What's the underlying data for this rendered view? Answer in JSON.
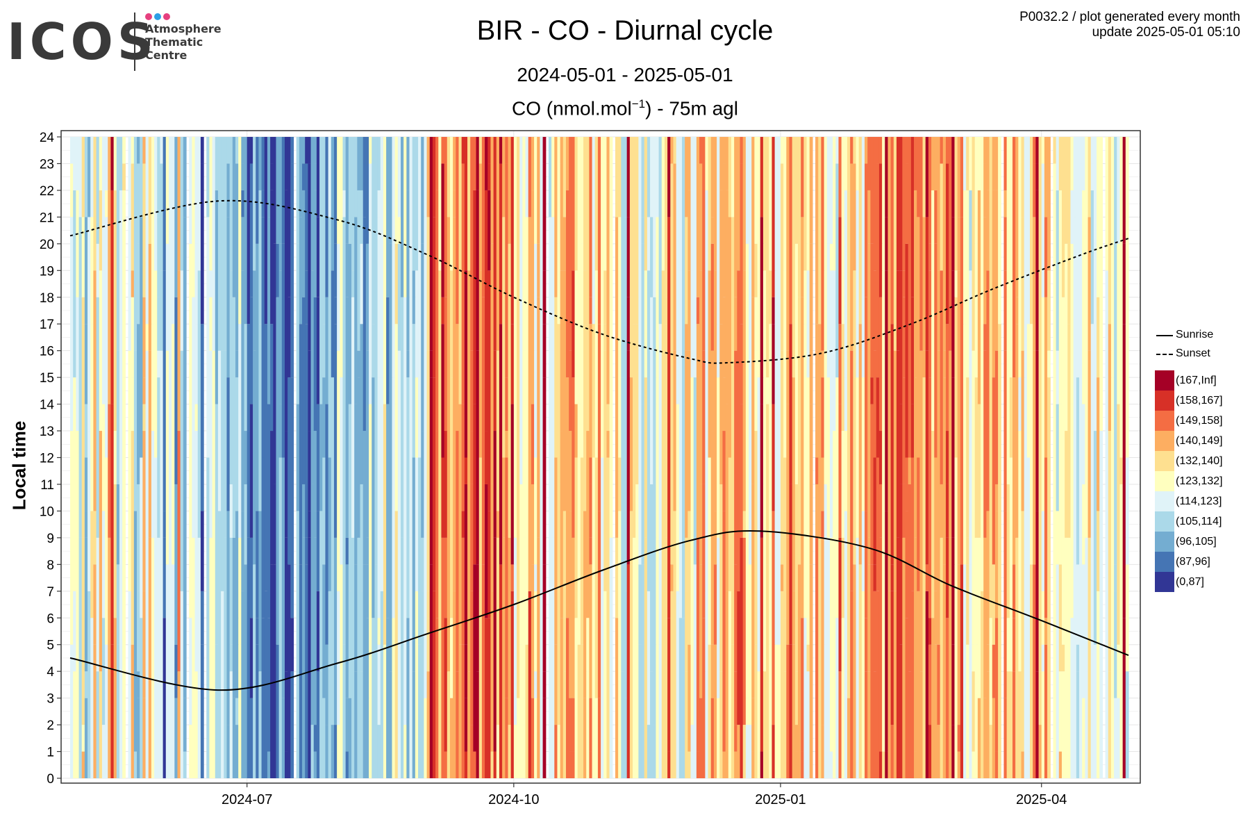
{
  "logo": {
    "word": "ICOS",
    "line1": "Atmosphere",
    "line2": "Thematic",
    "line3": "Centre",
    "dot_colors": [
      "#e6407f",
      "#2e9fe6",
      "#e6407f"
    ]
  },
  "header": {
    "title": "BIR - CO - Diurnal cycle",
    "date_range": "2024-05-01 - 2025-05-01",
    "quantity_prefix": "CO (nmol.mol",
    "quantity_exp": "−1",
    "quantity_suffix": ") - 75m agl",
    "product_line": "P0032.2 / plot generated every month",
    "update_line": "update  2025-05-01 05:10"
  },
  "chart_data": {
    "type": "heatmap",
    "ylabel": "Local time",
    "xlabel": "",
    "x_range": [
      "2024-05-01",
      "2025-05-01"
    ],
    "ylim": [
      0,
      24
    ],
    "y_ticks": [
      0,
      1,
      2,
      3,
      4,
      5,
      6,
      7,
      8,
      9,
      10,
      11,
      12,
      13,
      14,
      15,
      16,
      17,
      18,
      19,
      20,
      21,
      22,
      23,
      24
    ],
    "x_ticks": [
      "2024-07",
      "2024-10",
      "2025-01",
      "2025-04"
    ],
    "x_tick_dates": [
      "2024-07-01",
      "2024-10-01",
      "2025-01-01",
      "2025-04-01"
    ],
    "grid": true,
    "legend_position": "right",
    "color_bins": [
      {
        "label": "(167,Inf]",
        "min": 167,
        "max": null,
        "color": "#a50026"
      },
      {
        "label": "(158,167]",
        "min": 158,
        "max": 167,
        "color": "#d73027"
      },
      {
        "label": "(149,158]",
        "min": 149,
        "max": 158,
        "color": "#f46d43"
      },
      {
        "label": "(140,149]",
        "min": 140,
        "max": 149,
        "color": "#fdae61"
      },
      {
        "label": "(132,140]",
        "min": 132,
        "max": 140,
        "color": "#fee090"
      },
      {
        "label": "(123,132]",
        "min": 123,
        "max": 132,
        "color": "#ffffbf"
      },
      {
        "label": "(114,123]",
        "min": 114,
        "max": 123,
        "color": "#e0f3f8"
      },
      {
        "label": "(105,114]",
        "min": 105,
        "max": 114,
        "color": "#abd9e9"
      },
      {
        "label": "(96,105]",
        "min": 96,
        "max": 105,
        "color": "#74add1"
      },
      {
        "label": "(87,96]",
        "min": 87,
        "max": 96,
        "color": "#4575b4"
      },
      {
        "label": "(0,87]",
        "min": 0,
        "max": 87,
        "color": "#313695"
      }
    ],
    "heatmap_base_by_month": [
      {
        "month": "2024-05",
        "level": 124
      },
      {
        "month": "2024-06",
        "level": 107
      },
      {
        "month": "2024-07",
        "level": 95
      },
      {
        "month": "2024-08",
        "level": 110
      },
      {
        "month": "2024-09",
        "level": 150
      },
      {
        "month": "2024-10",
        "level": 137
      },
      {
        "month": "2024-11",
        "level": 126
      },
      {
        "month": "2024-12",
        "level": 134
      },
      {
        "month": "2025-01",
        "level": 138
      },
      {
        "month": "2025-02",
        "level": 142
      },
      {
        "month": "2025-03",
        "level": 136
      },
      {
        "month": "2025-04",
        "level": 128
      }
    ],
    "series": [
      {
        "name": "Sunrise",
        "style": "solid",
        "points": [
          [
            "2024-05-01",
            4.5
          ],
          [
            "2024-06-21",
            3.3
          ],
          [
            "2024-08-01",
            4.3
          ],
          [
            "2024-09-01",
            5.4
          ],
          [
            "2024-10-01",
            6.5
          ],
          [
            "2024-11-01",
            7.8
          ],
          [
            "2024-12-01",
            8.9
          ],
          [
            "2024-12-25",
            9.25
          ],
          [
            "2025-02-01",
            8.6
          ],
          [
            "2025-03-01",
            7.2
          ],
          [
            "2025-04-01",
            5.9
          ],
          [
            "2025-05-01",
            4.6
          ]
        ]
      },
      {
        "name": "Sunset",
        "style": "dashed",
        "points": [
          [
            "2024-05-01",
            20.3
          ],
          [
            "2024-06-21",
            21.6
          ],
          [
            "2024-08-01",
            20.9
          ],
          [
            "2024-09-01",
            19.6
          ],
          [
            "2024-10-01",
            18.0
          ],
          [
            "2024-11-01",
            16.6
          ],
          [
            "2024-12-01",
            15.7
          ],
          [
            "2024-12-14",
            15.55
          ],
          [
            "2025-01-15",
            15.9
          ],
          [
            "2025-02-15",
            17.0
          ],
          [
            "2025-03-15",
            18.3
          ],
          [
            "2025-04-15",
            19.6
          ],
          [
            "2025-05-01",
            20.2
          ]
        ]
      }
    ]
  }
}
